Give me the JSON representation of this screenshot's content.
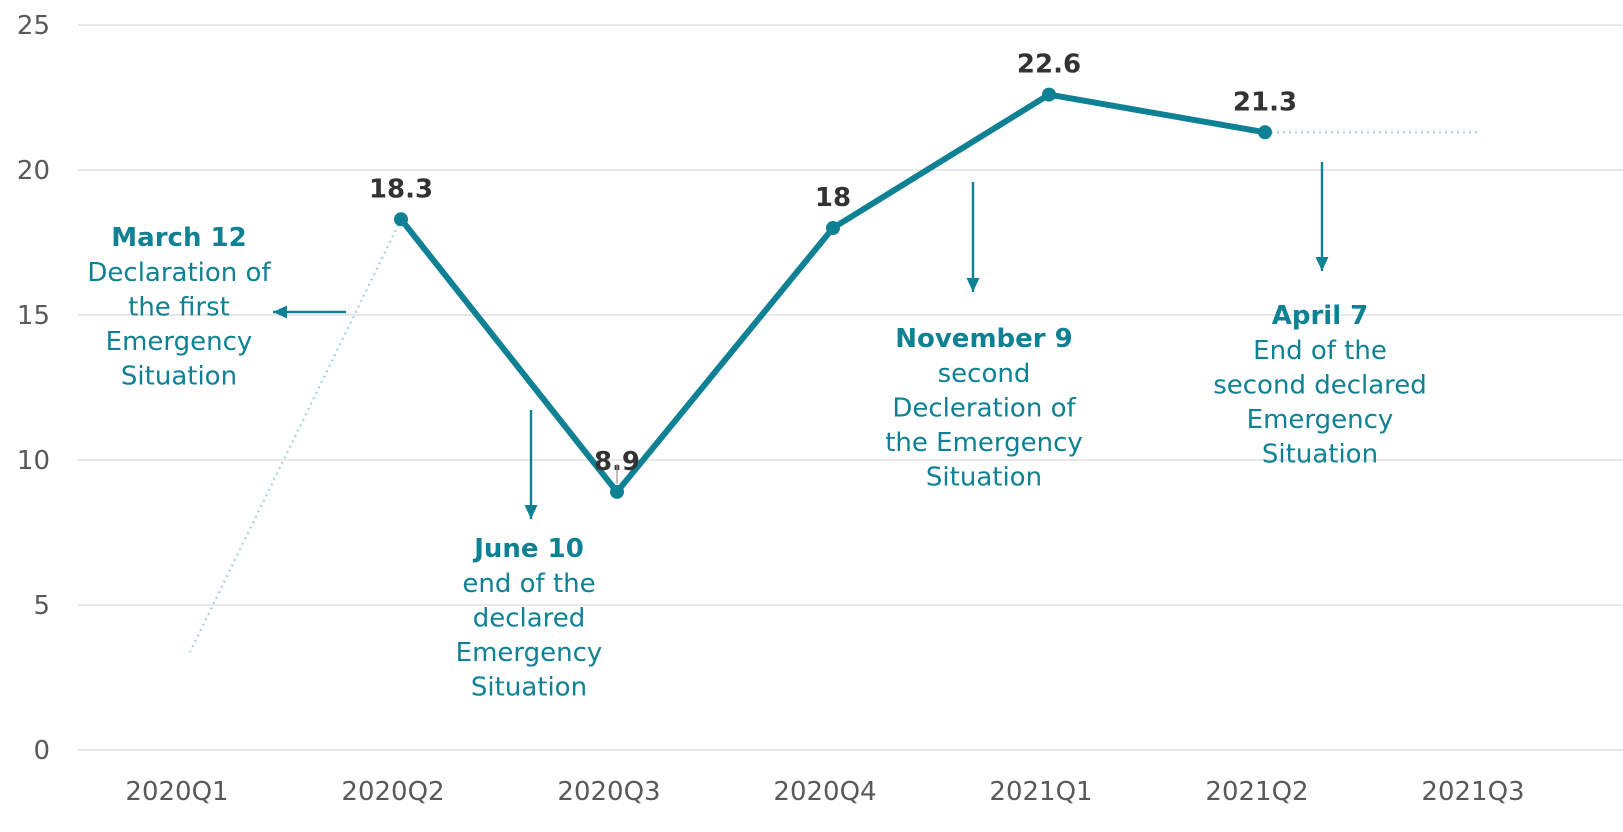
{
  "colors": {
    "series": "#0e8194",
    "grid": "#d9d9d9",
    "dotted": "#a8d3da",
    "tick": "#595959",
    "value": "#333333"
  },
  "chart_data": {
    "type": "line",
    "categories": [
      "2020Q1",
      "2020Q2",
      "2020Q3",
      "2020Q4",
      "2021Q1",
      "2021Q2",
      "2021Q3"
    ],
    "series": [
      {
        "values": [
          null,
          18.3,
          8.9,
          18,
          22.6,
          21.3,
          null
        ]
      }
    ],
    "value_labels": [
      "18.3",
      "8.9",
      "18",
      "22.6",
      "21.3"
    ],
    "ylim": [
      0,
      25
    ],
    "yticks": [
      "0",
      "5",
      "10",
      "15",
      "20",
      "25"
    ],
    "grid": true,
    "title": "",
    "xlabel": "",
    "ylabel": "",
    "annotations": [
      {
        "title": "March 12",
        "lines": [
          "Declaration of",
          "the first",
          "Emergency",
          "Situation"
        ]
      },
      {
        "title": "June 10",
        "lines": [
          "end of the",
          "declared",
          "Emergency",
          "Situation"
        ]
      },
      {
        "title": "November 9",
        "lines": [
          "second",
          "Decleration of",
          "the Emergency",
          "Situation"
        ]
      },
      {
        "title": "April 7",
        "lines": [
          "End of the",
          "second declared",
          "Emergency",
          "Situation"
        ]
      }
    ]
  }
}
